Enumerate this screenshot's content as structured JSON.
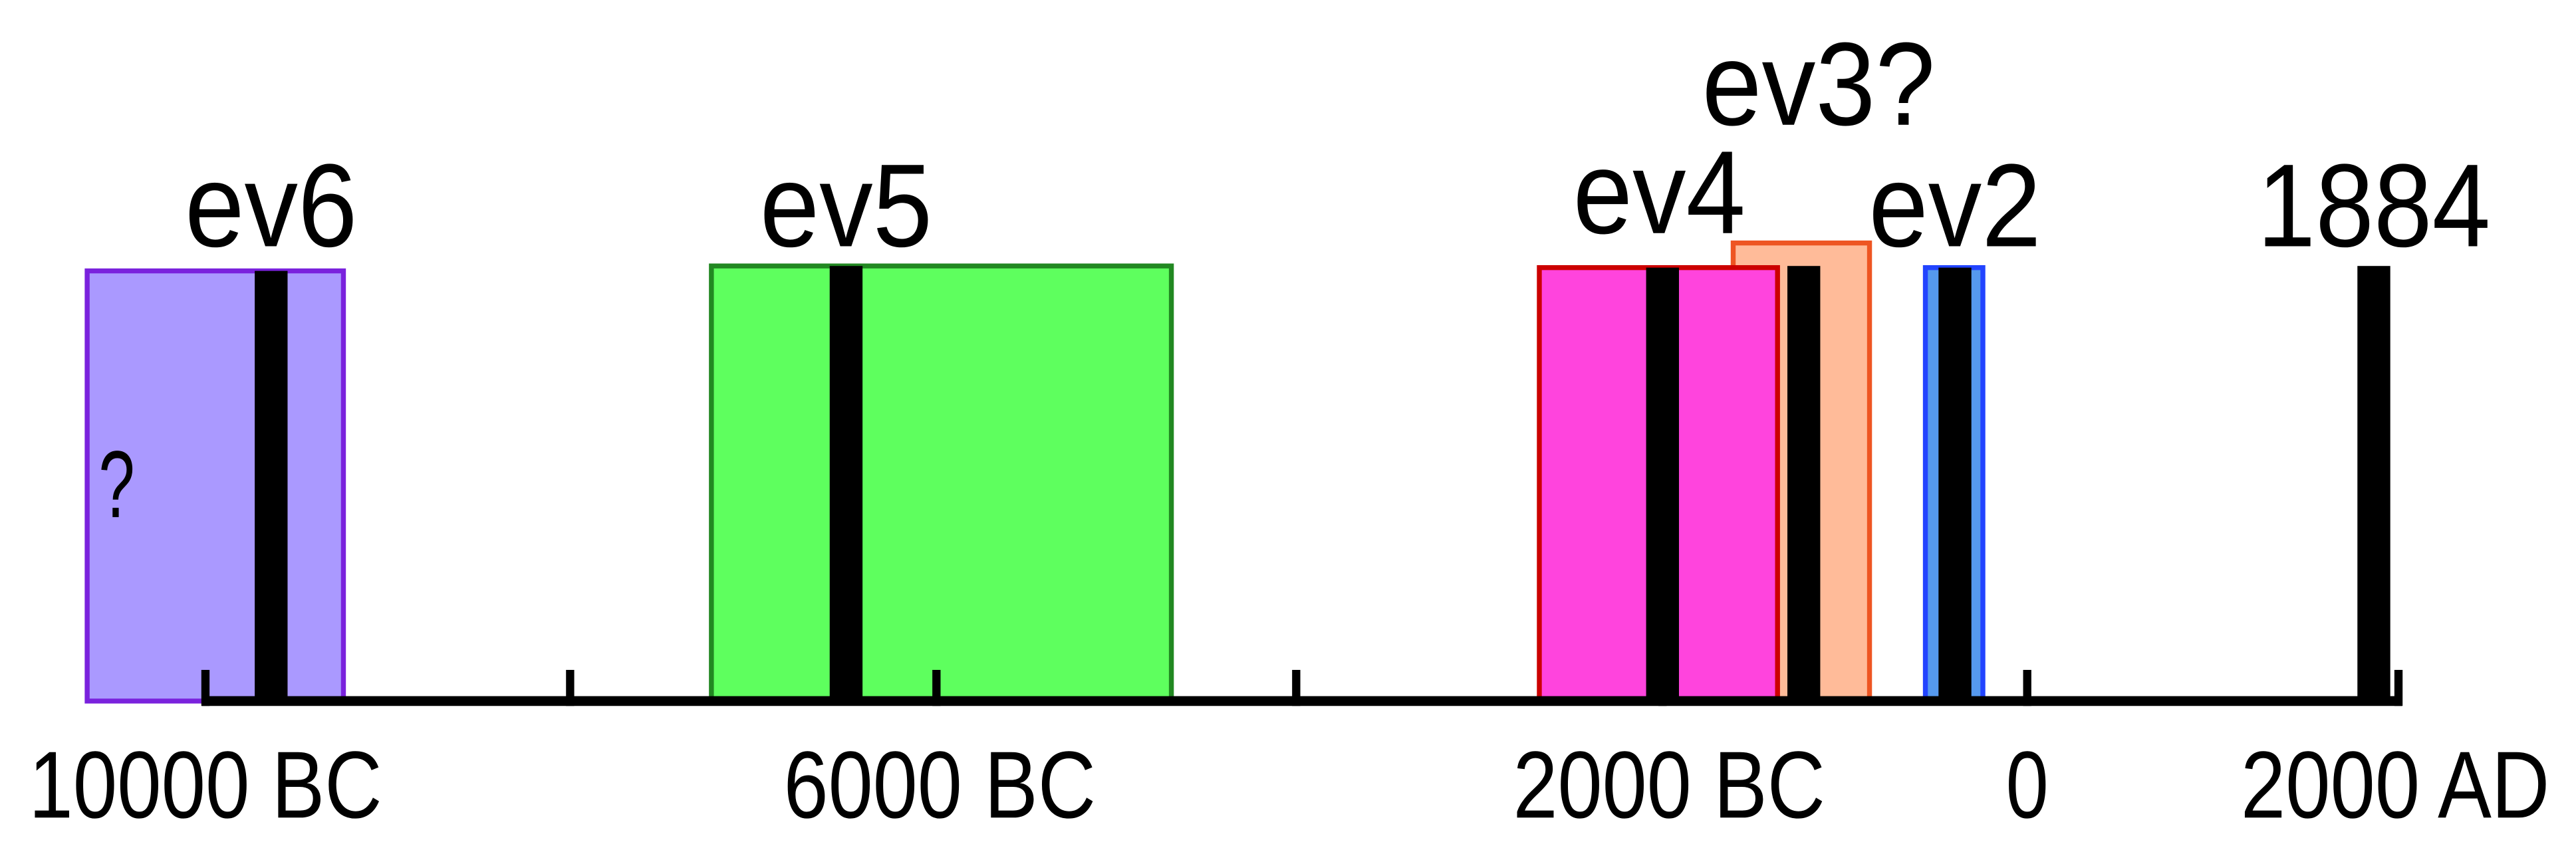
{
  "events": [
    {
      "label": "ev6",
      "note": "?"
    },
    {
      "label": "ev5"
    },
    {
      "label": "ev4"
    },
    {
      "label": "ev3?"
    },
    {
      "label": "ev2"
    },
    {
      "label": "1884"
    }
  ],
  "axis": {
    "labels": [
      "10000 BC",
      "6000 BC",
      "2000 BC",
      "0",
      "2000 AD"
    ]
  }
}
